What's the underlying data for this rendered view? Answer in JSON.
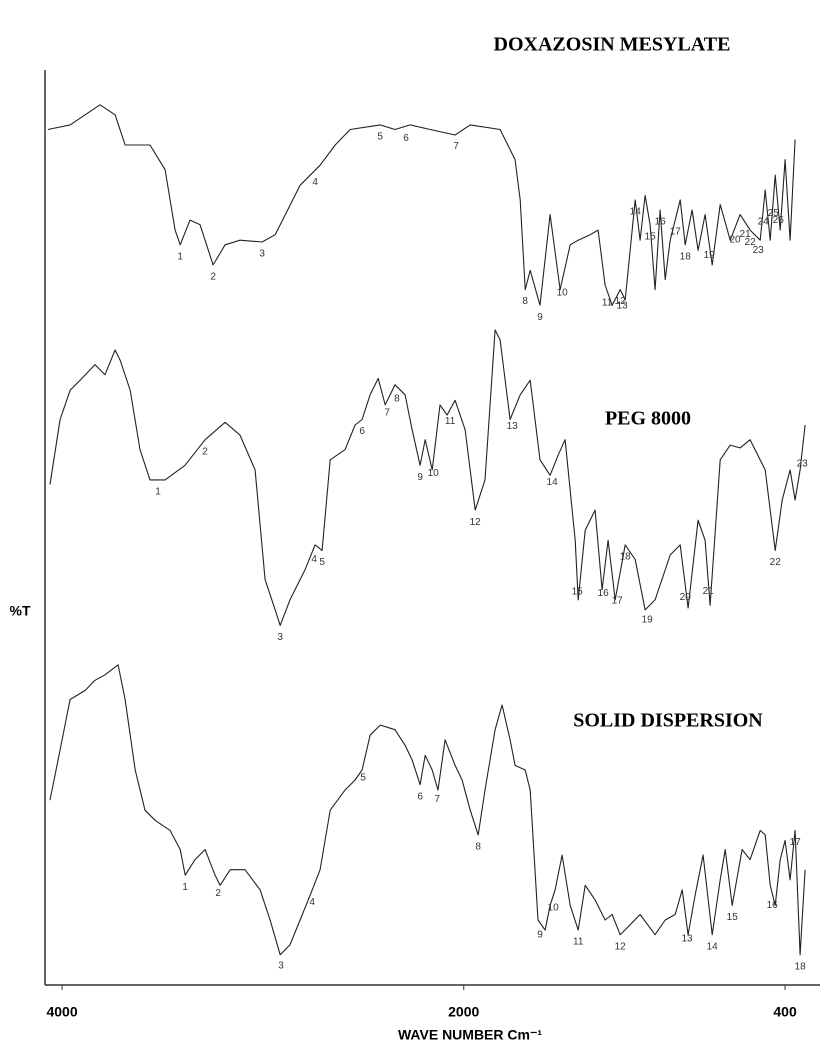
{
  "chart_data": {
    "type": "line",
    "ylabel": "%T",
    "xlabel": "WAVE NUMBER Cm⁻¹",
    "xlim": [
      4085,
      226
    ],
    "xticks": [
      4000,
      2000,
      400
    ],
    "ylim": [
      0,
      100
    ],
    "grid": false,
    "series": [
      {
        "name": "DOXAZOSIN MESYLATE",
        "color": "#222222",
        "x": [
          4070,
          3960,
          3811,
          3736,
          3686,
          3562,
          3487,
          3437,
          3412,
          3363,
          3313,
          3248,
          3188,
          3114,
          3004,
          2939,
          2815,
          2715,
          2640,
          2566,
          2416,
          2342,
          2267,
          2167,
          2043,
          1968,
          1819,
          1744,
          1719,
          1694,
          1669,
          1620,
          1570,
          1520,
          1470,
          1430,
          1371,
          1331,
          1296,
          1261,
          1221,
          1196,
          1146,
          1122,
          1097,
          1072,
          1047,
          1022,
          997,
          972,
          922,
          897,
          863,
          833,
          798,
          763,
          723,
          673,
          624,
          574,
          524,
          499,
          474,
          449,
          424,
          400,
          375,
          350
        ],
        "values": [
          93.5,
          94.0,
          96.2,
          95.1,
          91.8,
          91.8,
          89.1,
          82.5,
          80.9,
          83.6,
          83.1,
          78.7,
          80.9,
          81.4,
          81.2,
          82.0,
          87.4,
          89.6,
          91.8,
          93.5,
          94.0,
          93.5,
          94.0,
          93.5,
          92.9,
          94.0,
          93.5,
          90.2,
          85.8,
          76.0,
          78.1,
          74.3,
          84.2,
          76.0,
          80.9,
          81.4,
          82.0,
          82.5,
          76.5,
          74.3,
          76.0,
          74.9,
          85.8,
          81.4,
          86.3,
          83.1,
          76.0,
          84.7,
          77.1,
          81.4,
          85.8,
          80.9,
          84.7,
          80.3,
          84.2,
          78.7,
          85.3,
          81.4,
          84.2,
          82.5,
          81.4,
          86.9,
          81.4,
          88.5,
          82.5,
          90.2,
          81.4,
          92.4
        ],
        "peaks": [
          {
            "label": "1",
            "x": 3412
          },
          {
            "label": "2",
            "x": 3248
          },
          {
            "label": "3",
            "x": 3004
          },
          {
            "label": "4",
            "x": 2740
          },
          {
            "label": "5",
            "x": 2416
          },
          {
            "label": "6",
            "x": 2287
          },
          {
            "label": "7",
            "x": 2038
          },
          {
            "label": "8",
            "x": 1694
          },
          {
            "label": "9",
            "x": 1620
          },
          {
            "label": "10",
            "x": 1510
          },
          {
            "label": "11",
            "x": 1286
          },
          {
            "label": "12",
            "x": 1221
          },
          {
            "label": "13",
            "x": 1211
          },
          {
            "label": "14",
            "x": 1146
          },
          {
            "label": "15",
            "x": 1072
          },
          {
            "label": "16",
            "x": 1022
          },
          {
            "label": "17",
            "x": 947
          },
          {
            "label": "18",
            "x": 897
          },
          {
            "label": "19",
            "x": 778
          },
          {
            "label": "20",
            "x": 649
          },
          {
            "label": "21",
            "x": 599
          },
          {
            "label": "22",
            "x": 574
          },
          {
            "label": "23",
            "x": 534
          },
          {
            "label": "24",
            "x": 509
          },
          {
            "label": "25",
            "x": 459
          },
          {
            "label": "26",
            "x": 434
          }
        ]
      },
      {
        "name": "PEG 8000",
        "color": "#222222",
        "x": [
          4060,
          4010,
          3960,
          3910,
          3836,
          3786,
          3736,
          3711,
          3661,
          3612,
          3562,
          3487,
          3388,
          3288,
          3188,
          3114,
          3039,
          2989,
          2939,
          2914,
          2865,
          2790,
          2740,
          2705,
          2665,
          2591,
          2541,
          2506,
          2466,
          2426,
          2391,
          2342,
          2292,
          2257,
          2217,
          2192,
          2157,
          2118,
          2083,
          2043,
          1993,
          1943,
          1894,
          1844,
          1819,
          1769,
          1719,
          1669,
          1620,
          1570,
          1530,
          1495,
          1445,
          1430,
          1395,
          1346,
          1311,
          1281,
          1246,
          1196,
          1146,
          1097,
          1047,
          972,
          922,
          883,
          833,
          798,
          773,
          723,
          673,
          624,
          574,
          499,
          449,
          414,
          375,
          350,
          325,
          300
        ],
        "values": [
          54.7,
          61.8,
          65.0,
          66.1,
          67.8,
          66.7,
          69.4,
          68.3,
          65.0,
          58.5,
          55.2,
          55.2,
          56.8,
          59.6,
          61.5,
          60.1,
          56.3,
          44.3,
          41.0,
          39.3,
          42.1,
          45.4,
          48.1,
          47.5,
          57.4,
          58.5,
          61.2,
          61.8,
          64.5,
          66.3,
          63.4,
          65.6,
          64.5,
          60.7,
          56.8,
          59.6,
          56.3,
          63.4,
          62.3,
          63.9,
          60.7,
          51.9,
          55.2,
          71.6,
          70.5,
          61.8,
          64.5,
          66.1,
          57.4,
          55.7,
          57.9,
          59.6,
          48.6,
          42.1,
          49.7,
          51.9,
          43.2,
          48.6,
          42.1,
          48.1,
          46.5,
          41.0,
          42.1,
          47.0,
          48.1,
          41.2,
          50.8,
          48.6,
          41.5,
          57.4,
          59.0,
          58.7,
          59.6,
          56.3,
          47.5,
          53.0,
          56.3,
          53.0,
          56.3,
          61.2
        ],
        "peaks": [
          {
            "label": "1",
            "x": 3522
          },
          {
            "label": "2",
            "x": 3288
          },
          {
            "label": "3",
            "x": 2914
          },
          {
            "label": "4",
            "x": 2745
          },
          {
            "label": "5",
            "x": 2705
          },
          {
            "label": "6",
            "x": 2506
          },
          {
            "label": "7",
            "x": 2381
          },
          {
            "label": "8",
            "x": 2332
          },
          {
            "label": "9",
            "x": 2217
          },
          {
            "label": "10",
            "x": 2152
          },
          {
            "label": "11",
            "x": 2068
          },
          {
            "label": "12",
            "x": 1943
          },
          {
            "label": "13",
            "x": 1759
          },
          {
            "label": "14",
            "x": 1560
          },
          {
            "label": "15",
            "x": 1435
          },
          {
            "label": "16",
            "x": 1306
          },
          {
            "label": "17",
            "x": 1236
          },
          {
            "label": "18",
            "x": 1196
          },
          {
            "label": "19",
            "x": 1087
          },
          {
            "label": "20",
            "x": 897
          },
          {
            "label": "21",
            "x": 783
          },
          {
            "label": "22",
            "x": 449
          },
          {
            "label": "23",
            "x": 315
          }
        ]
      },
      {
        "name": "SOLID DISPERSION",
        "color": "#222222",
        "x": [
          4060,
          4010,
          3960,
          3885,
          3836,
          3786,
          3721,
          3686,
          3636,
          3587,
          3537,
          3462,
          3412,
          3387,
          3338,
          3288,
          3238,
          3213,
          3163,
          3089,
          3014,
          2964,
          2914,
          2865,
          2815,
          2765,
          2715,
          2665,
          2591,
          2541,
          2506,
          2466,
          2416,
          2342,
          2292,
          2257,
          2217,
          2192,
          2157,
          2128,
          2093,
          2043,
          2008,
          1968,
          1928,
          1894,
          1844,
          1809,
          1769,
          1744,
          1694,
          1669,
          1630,
          1595,
          1570,
          1545,
          1510,
          1470,
          1430,
          1395,
          1346,
          1296,
          1261,
          1221,
          1171,
          1122,
          1047,
          997,
          947,
          912,
          883,
          848,
          808,
          763,
          723,
          698,
          663,
          614,
          574,
          524,
          499,
          474,
          449,
          424,
          400,
          375,
          350,
          325,
          300
        ],
        "values": [
          20.2,
          25.7,
          31.2,
          32.2,
          33.3,
          33.9,
          35.0,
          31.2,
          23.5,
          19.1,
          18.0,
          16.9,
          14.8,
          12.0,
          13.7,
          14.8,
          12.0,
          10.9,
          12.6,
          12.6,
          10.4,
          7.1,
          3.3,
          4.4,
          7.1,
          9.8,
          12.6,
          19.1,
          21.3,
          22.4,
          23.5,
          27.3,
          28.4,
          27.9,
          26.2,
          24.6,
          21.9,
          25.1,
          23.5,
          21.3,
          26.8,
          24.0,
          22.4,
          19.1,
          16.4,
          21.3,
          27.9,
          30.6,
          26.8,
          24.0,
          23.5,
          21.3,
          7.1,
          6.0,
          8.7,
          10.4,
          14.2,
          8.7,
          6.0,
          10.9,
          9.3,
          7.1,
          7.7,
          5.5,
          6.6,
          7.7,
          5.5,
          7.1,
          7.7,
          10.4,
          5.5,
          9.8,
          14.2,
          5.5,
          11.5,
          14.8,
          8.7,
          14.8,
          13.7,
          16.9,
          16.4,
          10.9,
          8.7,
          13.7,
          15.8,
          11.5,
          16.9,
          3.3,
          12.6
        ],
        "peaks": [
          {
            "label": "1",
            "x": 3387
          },
          {
            "label": "2",
            "x": 3223
          },
          {
            "label": "3",
            "x": 2910
          },
          {
            "label": "4",
            "x": 2755
          },
          {
            "label": "5",
            "x": 2501
          },
          {
            "label": "6",
            "x": 2217
          },
          {
            "label": "7",
            "x": 2132
          },
          {
            "label": "8",
            "x": 1928
          },
          {
            "label": "9",
            "x": 1620
          },
          {
            "label": "10",
            "x": 1555
          },
          {
            "label": "11",
            "x": 1430
          },
          {
            "label": "12",
            "x": 1221
          },
          {
            "label": "13",
            "x": 888
          },
          {
            "label": "14",
            "x": 763
          },
          {
            "label": "15",
            "x": 663
          },
          {
            "label": "16",
            "x": 464
          },
          {
            "label": "17",
            "x": 350
          },
          {
            "label": "18",
            "x": 325
          }
        ]
      }
    ]
  }
}
